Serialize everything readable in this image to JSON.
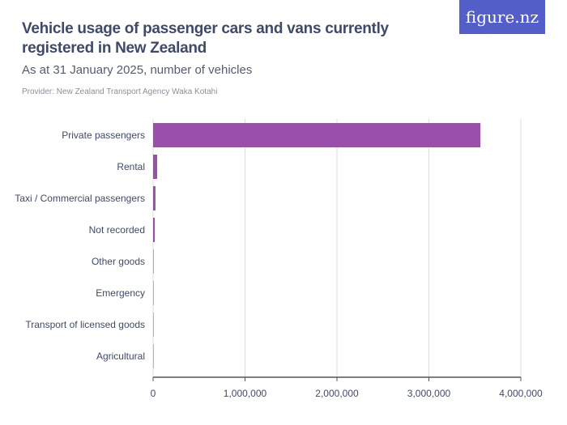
{
  "header": {
    "title": "Vehicle usage of passenger cars and vans currently registered in New Zealand",
    "subtitle": "As at 31 January 2025, number of vehicles",
    "provider": "Provider: New Zealand Transport Agency Waka Kotahi",
    "logo": "figure.nz"
  },
  "chart_data": {
    "type": "bar",
    "orientation": "horizontal",
    "title": "Vehicle usage of passenger cars and vans currently registered in New Zealand",
    "categories": [
      "Private passengers",
      "Rental",
      "Taxi / Commercial passengers",
      "Not recorded",
      "Other goods",
      "Emergency",
      "Transport of licensed goods",
      "Agricultural"
    ],
    "values": [
      3560000,
      44000,
      26000,
      18000,
      5000,
      3000,
      500,
      300
    ],
    "xlim": [
      0,
      4000000
    ],
    "xticks": [
      0,
      1000000,
      2000000,
      3000000,
      4000000
    ],
    "xtick_labels": [
      "0",
      "1,000,000",
      "2,000,000",
      "3,000,000",
      "4,000,000"
    ],
    "grid": true,
    "color": "#9a4fac"
  }
}
